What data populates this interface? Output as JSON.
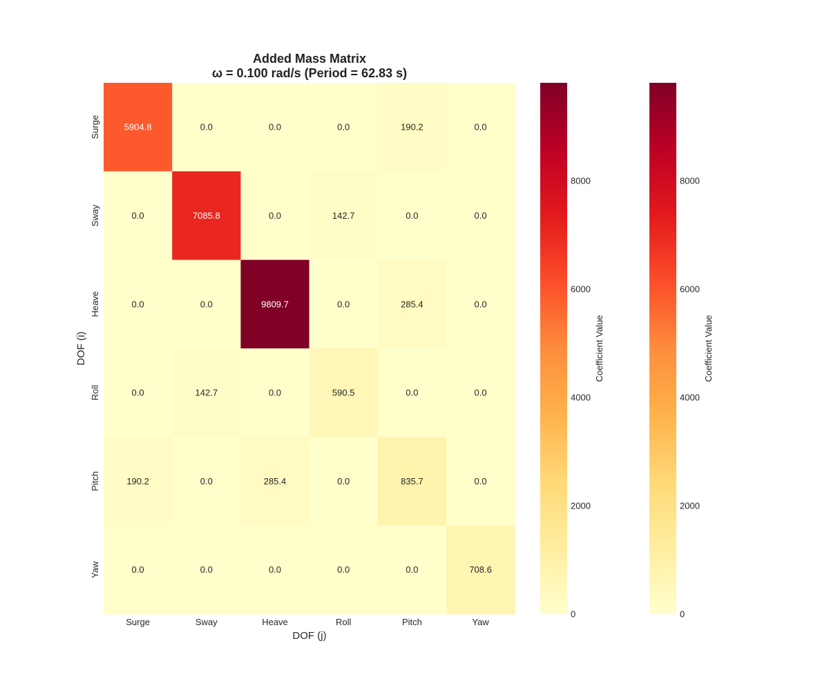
{
  "chart_data": {
    "type": "heatmap",
    "title": "Added Mass Matrix",
    "subtitle": "ω = 0.100 rad/s (Period = 62.83 s)",
    "xlabel": "DOF (j)",
    "ylabel": "DOF (i)",
    "x_categories": [
      "Surge",
      "Sway",
      "Heave",
      "Roll",
      "Pitch",
      "Yaw"
    ],
    "y_categories": [
      "Surge",
      "Sway",
      "Heave",
      "Roll",
      "Pitch",
      "Yaw"
    ],
    "values": [
      [
        5904.8,
        0.0,
        0.0,
        0.0,
        190.2,
        0.0
      ],
      [
        0.0,
        7085.8,
        0.0,
        142.7,
        0.0,
        0.0
      ],
      [
        0.0,
        0.0,
        9809.7,
        0.0,
        285.4,
        0.0
      ],
      [
        0.0,
        142.7,
        0.0,
        590.5,
        0.0,
        0.0
      ],
      [
        190.2,
        0.0,
        285.4,
        0.0,
        835.7,
        0.0
      ],
      [
        0.0,
        0.0,
        0.0,
        0.0,
        0.0,
        708.6
      ]
    ],
    "cell_labels": [
      [
        "5904.8",
        "0.0",
        "0.0",
        "0.0",
        "190.2",
        "0.0"
      ],
      [
        "0.0",
        "7085.8",
        "0.0",
        "142.7",
        "0.0",
        "0.0"
      ],
      [
        "0.0",
        "0.0",
        "9809.7",
        "0.0",
        "285.4",
        "0.0"
      ],
      [
        "0.0",
        "142.7",
        "0.0",
        "590.5",
        "0.0",
        "0.0"
      ],
      [
        "190.2",
        "0.0",
        "285.4",
        "0.0",
        "835.7",
        "0.0"
      ],
      [
        "0.0",
        "0.0",
        "0.0",
        "0.0",
        "0.0",
        "708.6"
      ]
    ],
    "colormap": "YlOrRd",
    "colormap_stops": [
      "#ffffcc",
      "#ffeda0",
      "#fed976",
      "#feb24c",
      "#fd8d3c",
      "#fc4e2a",
      "#e31a1c",
      "#bd0026",
      "#800026"
    ],
    "vmin": 0,
    "vmax": 9809.7,
    "colorbars": [
      {
        "label": "Coefficient Value",
        "ticks": [
          0,
          2000,
          4000,
          6000,
          8000
        ]
      },
      {
        "label": "Coefficient Value",
        "ticks": [
          0,
          2000,
          4000,
          6000,
          8000
        ]
      }
    ],
    "grid": false
  }
}
